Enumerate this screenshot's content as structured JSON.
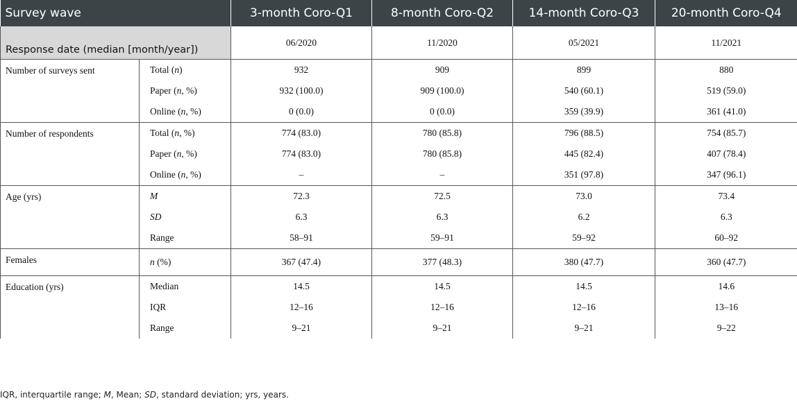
{
  "header": {
    "survey_wave": "Survey wave",
    "waves": [
      "3-month Coro-Q1",
      "8-month Coro-Q2",
      "14-month Coro-Q3",
      "20-month Coro-Q4"
    ]
  },
  "response_date": {
    "label": "Response date (median [month/year])",
    "values": [
      "06/2020",
      "11/2020",
      "05/2021",
      "11/2021"
    ]
  },
  "groups": [
    {
      "label": "Number of surveys sent",
      "rows": [
        {
          "pre": "Total (",
          "var": "n",
          "post": ")",
          "values": [
            "932",
            "909",
            "899",
            "880"
          ]
        },
        {
          "pre": "Paper (",
          "var": "n",
          "post": ", %)",
          "values": [
            "932 (100.0)",
            "909 (100.0)",
            "540 (60.1)",
            "519 (59.0)"
          ]
        },
        {
          "pre": "Online (",
          "var": "n",
          "post": ", %)",
          "values": [
            "0 (0.0)",
            "0 (0.0)",
            "359 (39.9)",
            "361 (41.0)"
          ]
        }
      ]
    },
    {
      "label": "Number of respondents",
      "rows": [
        {
          "pre": "Total (",
          "var": "n",
          "post": ", %)",
          "values": [
            "774 (83.0)",
            "780 (85.8)",
            "796 (88.5)",
            "754 (85.7)"
          ]
        },
        {
          "pre": "Paper (",
          "var": "n",
          "post": ", %)",
          "values": [
            "774 (83.0)",
            "780 (85.8)",
            "445 (82.4)",
            "407 (78.4)"
          ]
        },
        {
          "pre": "Online (",
          "var": "n",
          "post": ", %)",
          "values": [
            "–",
            "–",
            "351 (97.8)",
            "347 (96.1)"
          ]
        }
      ]
    },
    {
      "label": "Age (yrs)",
      "rows": [
        {
          "pre": "",
          "var": "M",
          "post": "",
          "values": [
            "72.3",
            "72.5",
            "73.0",
            "73.4"
          ]
        },
        {
          "pre": "",
          "var": "SD",
          "post": "",
          "values": [
            "6.3",
            "6.3",
            "6.2",
            "6.3"
          ]
        },
        {
          "pre": "Range",
          "var": "",
          "post": "",
          "values": [
            "58–91",
            "59–91",
            "59–92",
            "60–92"
          ]
        }
      ]
    },
    {
      "label": "Females",
      "rows": [
        {
          "pre": "",
          "var": "n",
          "post": " (%)",
          "values": [
            "367 (47.4)",
            "377 (48.3)",
            "380 (47.7)",
            "360 (47.7)"
          ]
        }
      ]
    },
    {
      "label": "Education (yrs)",
      "rows": [
        {
          "pre": "Median",
          "var": "",
          "post": "",
          "values": [
            "14.5",
            "14.5",
            "14.5",
            "14.6"
          ]
        },
        {
          "pre": "IQR",
          "var": "",
          "post": "",
          "values": [
            "12–16",
            "12–16",
            "12–16",
            "13–16"
          ]
        },
        {
          "pre": "Range",
          "var": "",
          "post": "",
          "values": [
            "9–21",
            "9–21",
            "9–21",
            "9–22"
          ]
        }
      ]
    }
  ],
  "footnote": {
    "p1": "IQR, interquartile range; ",
    "i1": "M",
    "p2": ", Mean; ",
    "i2": "SD",
    "p3": ", standard deviation; yrs, years."
  }
}
